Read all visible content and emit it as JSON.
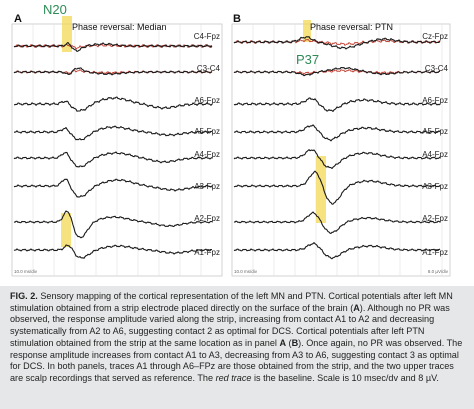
{
  "figure": {
    "annotations": {
      "n20": "N20",
      "p37": "P37"
    },
    "panel_a": {
      "letter": "A",
      "title": "Phase reversal: Median",
      "labels": [
        "C4-Fpz",
        "C3-C4",
        "A6-Fpz",
        "A5-Fpz",
        "A4-Fpz",
        "A3-Fpz",
        "A2-Fpz",
        "A1-Fpz"
      ],
      "scale_label": "10.0 ms/div"
    },
    "panel_b": {
      "letter": "B",
      "title": "Phase reversal: PTN",
      "labels": [
        "Cz-Fpz",
        "C3-C4",
        "A6-Fpz",
        "A5-Fpz",
        "A4-Fpz",
        "A3-Fpz",
        "A2-Fpz",
        "A1-Fpz"
      ],
      "scale_label": "10.0 ms/div",
      "sensitivity_label": "8.0 µV/div"
    },
    "colors": {
      "highlight": "#f3d54a",
      "baseline": "#c0392b",
      "annotation": "#2e8b57"
    }
  },
  "caption": {
    "fig_num": "FIG. 2.",
    "s1": " Sensory mapping of the cortical representation of the left MN and PTN. Cortical potentials after left MN stimulation obtained from a strip electrode placed directly on the surface of the brain (",
    "s1_bold": "A",
    "s2": "). Although no PR was observed, the response amplitude varied along the strip, increasing from contact A1 to A2 and decreasing systematically from A2 to A6, suggesting contact 2 as optimal for DCS. Cortical potentials after left PTN stimulation obtained from the strip at the same location as in panel ",
    "s2_bold": "A",
    "s3": " (",
    "s3_bold": "B",
    "s4": "). Once again, no PR was observed. The response amplitude increases from contact A1 to A3, decreasing from A3 to A6, suggesting contact 3 as optimal for DCS. In both panels, traces A1 through A6–FPz are those obtained from the strip, and the two upper traces are scalp recordings that served as reference. The ",
    "s4_em": "red trace",
    "s5": " is the baseline. Scale is 10 msec/dv and 8 µV."
  }
}
